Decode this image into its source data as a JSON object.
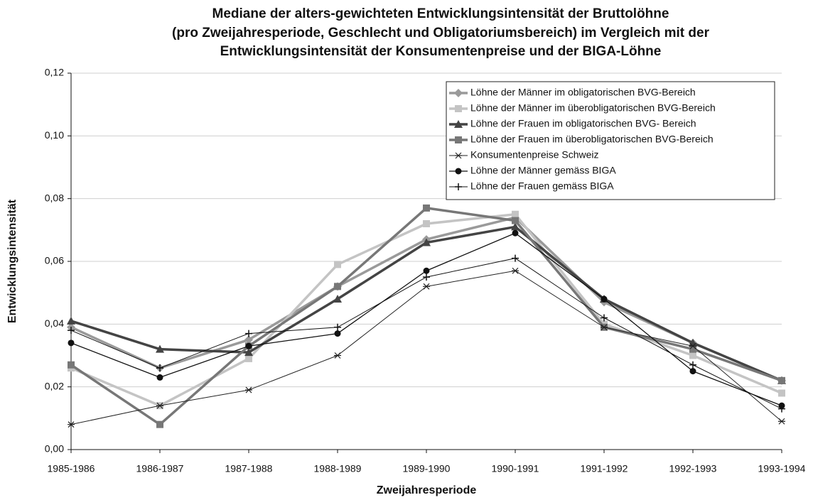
{
  "chart_data": {
    "type": "line",
    "title": [
      "Mediane der alters-gewichteten Entwicklungsintensität der Bruttolöhne",
      "(pro Zweijahresperiode, Geschlecht und Obligatoriumsbereich) im Vergleich mit der",
      "Entwicklungsintensität der Konsumentenpreise und der BIGA-Löhne"
    ],
    "x_label": "Zweijahresperiode",
    "y_label": "Entwicklungsintensität",
    "categories": [
      "1985-1986",
      "1986-1987",
      "1987-1988",
      "1988-1989",
      "1989-1990",
      "1990-1991",
      "1991-1992",
      "1992-1993",
      "1993-1994"
    ],
    "ylim": [
      0,
      0.12
    ],
    "yticks": [
      {
        "value": 0,
        "label": "0,00"
      },
      {
        "value": 0.02,
        "label": "0,02"
      },
      {
        "value": 0.04,
        "label": "0,04"
      },
      {
        "value": 0.06,
        "label": "0,06"
      },
      {
        "value": 0.08,
        "label": "0,08"
      },
      {
        "value": 0.1,
        "label": "0,10"
      },
      {
        "value": 0.12,
        "label": "0,12"
      }
    ],
    "grid": true,
    "legend": "top-right",
    "series": [
      {
        "name": "Löhne der Männer im obligatorischen BVG-Bereich",
        "color": "#9a9a9a",
        "width": 3.5,
        "marker": "diamond",
        "values": [
          0.039,
          0.026,
          0.035,
          0.052,
          0.067,
          0.074,
          0.047,
          0.034,
          0.022
        ]
      },
      {
        "name": "Löhne der Männer im überobligatorischen BVG-Bereich",
        "color": "#c4c4c4",
        "width": 3.5,
        "marker": "square",
        "values": [
          0.026,
          0.014,
          0.029,
          0.059,
          0.072,
          0.075,
          0.04,
          0.03,
          0.018
        ]
      },
      {
        "name": "Löhne der Frauen im obligatorischen BVG- Bereich",
        "color": "#444444",
        "width": 3.5,
        "marker": "triangle",
        "values": [
          0.041,
          0.032,
          0.031,
          0.048,
          0.066,
          0.071,
          0.048,
          0.034,
          0.022
        ]
      },
      {
        "name": "Löhne der Frauen im überobligatorischen BVG-Bereich",
        "color": "#777777",
        "width": 3.5,
        "marker": "square",
        "values": [
          0.027,
          0.008,
          0.033,
          0.052,
          0.077,
          0.073,
          0.039,
          0.032,
          0.022
        ]
      },
      {
        "name": "Konsumentenpreise Schweiz",
        "color": "#222222",
        "width": 1,
        "marker": "asterisk",
        "values": [
          0.008,
          0.014,
          0.019,
          0.03,
          0.052,
          0.057,
          0.039,
          0.033,
          0.009
        ]
      },
      {
        "name": "Löhne der Männer gemäss BIGA",
        "color": "#111111",
        "width": 1.3,
        "marker": "circle",
        "values": [
          0.034,
          0.023,
          0.033,
          0.037,
          0.057,
          0.069,
          0.048,
          0.025,
          0.014
        ]
      },
      {
        "name": "Löhne der Frauen gemäss BIGA",
        "color": "#111111",
        "width": 1,
        "marker": "plus",
        "values": [
          0.038,
          0.026,
          0.037,
          0.039,
          0.055,
          0.061,
          0.042,
          0.027,
          0.013
        ]
      }
    ]
  }
}
